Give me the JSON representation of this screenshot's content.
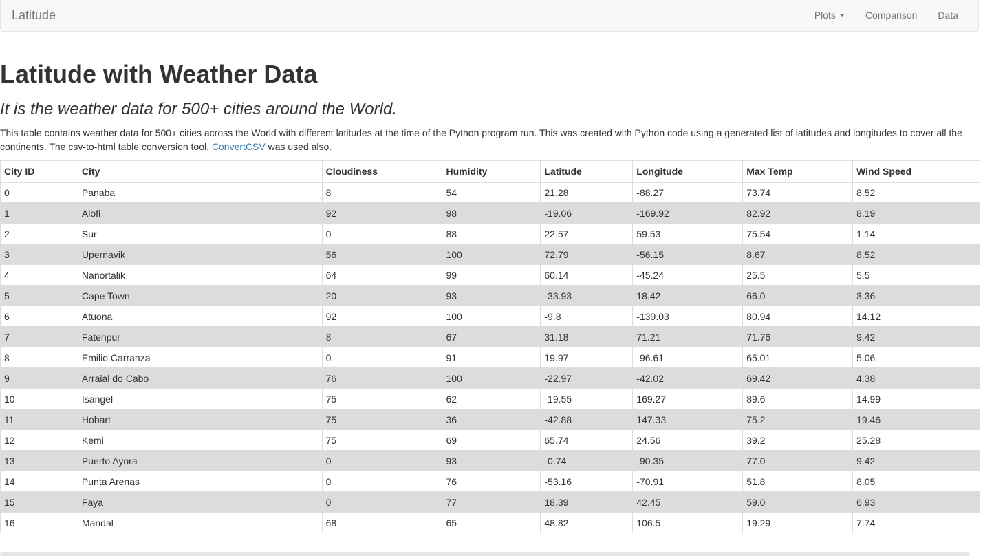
{
  "navbar": {
    "brand": "Latitude",
    "links": {
      "plots": "Plots",
      "comparison": "Comparison",
      "data": "Data"
    }
  },
  "main": {
    "title": "Latitude with Weather Data",
    "subtitle": "It is the weather data for 500+ cities around the World.",
    "description_before_link": "This table contains weather data for 500+ cities across the World with different latitudes at the time of the Python program run. This was created with Python code using a generated list of latitudes and longitudes to cover all the continents. The csv-to-html table conversion tool, ",
    "description_link": "ConvertCSV",
    "description_after_link": " was used also."
  },
  "table": {
    "headers": [
      "City ID",
      "City",
      "Cloudiness",
      "Humidity",
      "Latitude",
      "Longitude",
      "Max Temp",
      "Wind Speed"
    ],
    "rows": [
      [
        "0",
        "Panaba",
        "8",
        "54",
        "21.28",
        "-88.27",
        "73.74",
        "8.52"
      ],
      [
        "1",
        "Alofi",
        "92",
        "98",
        "-19.06",
        "-169.92",
        "82.92",
        "8.19"
      ],
      [
        "2",
        "Sur",
        "0",
        "88",
        "22.57",
        "59.53",
        "75.54",
        "1.14"
      ],
      [
        "3",
        "Upernavik",
        "56",
        "100",
        "72.79",
        "-56.15",
        "8.67",
        "8.52"
      ],
      [
        "4",
        "Nanortalik",
        "64",
        "99",
        "60.14",
        "-45.24",
        "25.5",
        "5.5"
      ],
      [
        "5",
        "Cape Town",
        "20",
        "93",
        "-33.93",
        "18.42",
        "66.0",
        "3.36"
      ],
      [
        "6",
        "Atuona",
        "92",
        "100",
        "-9.8",
        "-139.03",
        "80.94",
        "14.12"
      ],
      [
        "7",
        "Fatehpur",
        "8",
        "67",
        "31.18",
        "71.21",
        "71.76",
        "9.42"
      ],
      [
        "8",
        "Emilio Carranza",
        "0",
        "91",
        "19.97",
        "-96.61",
        "65.01",
        "5.06"
      ],
      [
        "9",
        "Arraial do Cabo",
        "76",
        "100",
        "-22.97",
        "-42.02",
        "69.42",
        "4.38"
      ],
      [
        "10",
        "Isangel",
        "75",
        "62",
        "-19.55",
        "169.27",
        "89.6",
        "14.99"
      ],
      [
        "11",
        "Hobart",
        "75",
        "36",
        "-42.88",
        "147.33",
        "75.2",
        "19.46"
      ],
      [
        "12",
        "Kemi",
        "75",
        "69",
        "65.74",
        "24.56",
        "39.2",
        "25.28"
      ],
      [
        "13",
        "Puerto Ayora",
        "0",
        "93",
        "-0.74",
        "-90.35",
        "77.0",
        "9.42"
      ],
      [
        "14",
        "Punta Arenas",
        "0",
        "76",
        "-53.16",
        "-70.91",
        "51.8",
        "8.05"
      ],
      [
        "15",
        "Faya",
        "0",
        "77",
        "18.39",
        "42.45",
        "59.0",
        "6.93"
      ],
      [
        "16",
        "Mandal",
        "68",
        "65",
        "48.82",
        "106.5",
        "19.29",
        "7.74"
      ]
    ]
  }
}
